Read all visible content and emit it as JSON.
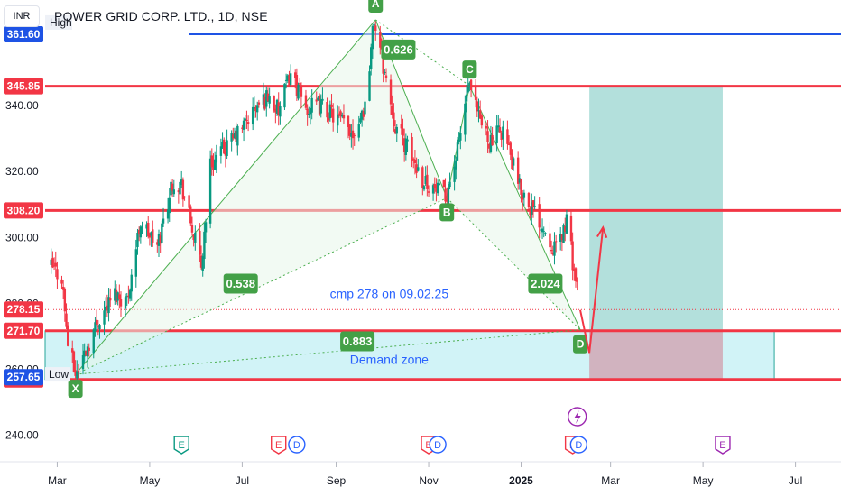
{
  "header": {
    "currency": "INR",
    "title": "POWER GRID CORP. LTD., 1D, NSE"
  },
  "chart_data": {
    "type": "candlestick",
    "symbol": "POWER GRID CORP. LTD.",
    "interval": "1D",
    "exchange": "NSE",
    "currency": "INR",
    "ylim": [
      232,
      372
    ],
    "y_ticks": [
      240.0,
      260.0,
      280.0,
      300.0,
      320.0,
      340.0
    ],
    "y_tick_labels": [
      "240.00",
      "260.00",
      "280.00",
      "300.00",
      "320.00",
      "340.00"
    ],
    "x_range": [
      "2024-02-22",
      "2025-07-31"
    ],
    "x_ticks": [
      {
        "date": "2024-03-01",
        "label": "Mar"
      },
      {
        "date": "2024-05-01",
        "label": "May"
      },
      {
        "date": "2024-07-01",
        "label": "Jul"
      },
      {
        "date": "2024-09-01",
        "label": "Sep"
      },
      {
        "date": "2024-11-01",
        "label": "Nov"
      },
      {
        "date": "2025-01-01",
        "label": "2025"
      },
      {
        "date": "2025-03-01",
        "label": "Mar"
      },
      {
        "date": "2025-05-01",
        "label": "May"
      },
      {
        "date": "2025-07-01",
        "label": "Jul"
      }
    ],
    "price_path": [
      [
        "2024-02-26",
        291
      ],
      [
        "2024-03-04",
        288
      ],
      [
        "2024-03-08",
        268
      ],
      [
        "2024-03-13",
        258.5
      ],
      [
        "2024-03-20",
        266
      ],
      [
        "2024-03-28",
        275
      ],
      [
        "2024-04-08",
        283
      ],
      [
        "2024-04-16",
        281
      ],
      [
        "2024-04-25",
        305
      ],
      [
        "2024-05-06",
        297
      ],
      [
        "2024-05-16",
        317
      ],
      [
        "2024-05-22",
        316
      ],
      [
        "2024-06-04",
        291
      ],
      [
        "2024-06-10",
        322
      ],
      [
        "2024-06-26",
        330
      ],
      [
        "2024-07-08",
        338
      ],
      [
        "2024-07-18",
        343
      ],
      [
        "2024-07-25",
        338
      ],
      [
        "2024-08-02",
        350
      ],
      [
        "2024-08-12",
        339
      ],
      [
        "2024-08-22",
        340
      ],
      [
        "2024-09-02",
        336
      ],
      [
        "2024-09-12",
        332
      ],
      [
        "2024-09-20",
        340
      ],
      [
        "2024-09-26",
        366
      ],
      [
        "2024-10-03",
        350
      ],
      [
        "2024-10-10",
        334
      ],
      [
        "2024-10-18",
        327
      ],
      [
        "2024-10-28",
        318
      ],
      [
        "2024-11-04",
        315
      ],
      [
        "2024-11-12",
        312
      ],
      [
        "2024-11-20",
        326
      ],
      [
        "2024-11-27",
        346
      ],
      [
        "2024-12-04",
        336
      ],
      [
        "2024-12-12",
        329
      ],
      [
        "2024-12-20",
        333
      ],
      [
        "2024-12-30",
        316
      ],
      [
        "2025-01-08",
        309
      ],
      [
        "2025-01-16",
        303
      ],
      [
        "2025-01-24",
        296
      ],
      [
        "2025-01-31",
        305
      ],
      [
        "2025-02-05",
        290
      ],
      [
        "2025-02-09",
        278
      ]
    ],
    "horizontal_levels": [
      {
        "label": "361.60",
        "value": 361.6,
        "color": "#1e53e5"
      },
      {
        "label": "345.85",
        "value": 345.85,
        "color": "#f23645"
      },
      {
        "label": "308.20",
        "value": 308.2,
        "color": "#f23645"
      },
      {
        "label": "271.70",
        "value": 271.7,
        "color": "#f23645"
      },
      {
        "label": "256.95",
        "value": 256.95,
        "color": "#f23645"
      }
    ],
    "price_labels": [
      {
        "label": "278.15",
        "value": 278.15,
        "color": "#f23645"
      },
      {
        "label": "257.65",
        "value": 257.65,
        "color": "#1e53e5"
      }
    ],
    "high_low_labels": {
      "high": "High",
      "low": "Low"
    },
    "harmonic_pattern": {
      "points": [
        {
          "name": "X",
          "date": "2024-03-13",
          "value": 258.5
        },
        {
          "name": "A",
          "date": "2024-09-27",
          "value": 366
        },
        {
          "name": "B",
          "date": "2024-11-13",
          "value": 312
        },
        {
          "name": "C",
          "date": "2024-11-28",
          "value": 346
        },
        {
          "name": "D",
          "date": "2025-02-09",
          "value": 272
        }
      ],
      "ratios": [
        {
          "label": "0.626",
          "date": "2024-10-12",
          "value": 357
        },
        {
          "label": "0.538",
          "date": "2024-06-30",
          "value": 286
        },
        {
          "label": "2.024",
          "date": "2025-01-17",
          "value": 286
        },
        {
          "label": "0.883",
          "date": "2024-09-15",
          "value": 268.5
        }
      ]
    },
    "annotations": [
      {
        "text": "cmp 278 on 09.02.25",
        "date": "2024-10-06",
        "value": 283
      },
      {
        "text": "Demand zone",
        "date": "2024-10-06",
        "value": 263
      }
    ],
    "demand_zone": {
      "from": "2024-02-22",
      "to": "2025-06-17",
      "top": 271.7,
      "bottom": 256.95,
      "color": "#b2ebf2"
    },
    "position": {
      "start": "2025-02-15",
      "end": "2025-05-14",
      "target_top": 345.85,
      "entry": 271.7,
      "stop": 256.95,
      "profit_color": "#26a69a",
      "loss_color": "#d1a3b0"
    },
    "projection_arrow": [
      [
        "2025-02-09",
        278
      ],
      [
        "2025-02-15",
        265
      ],
      [
        "2025-02-24",
        303
      ]
    ],
    "events": [
      {
        "type": "E",
        "color": "#089981",
        "date": "2024-05-22"
      },
      {
        "type": "E",
        "color": "#f23645",
        "date": "2024-07-25"
      },
      {
        "type": "D",
        "color": "#2962ff",
        "date": "2024-08-06"
      },
      {
        "type": "E",
        "color": "#f23645",
        "date": "2024-11-01"
      },
      {
        "type": "D",
        "color": "#2962ff",
        "date": "2024-11-07"
      },
      {
        "type": "E",
        "color": "#f23645",
        "date": "2025-02-04"
      },
      {
        "type": "D",
        "color": "#2962ff",
        "date": "2025-02-08"
      },
      {
        "type": "E",
        "color": "#9c27b0",
        "date": "2025-05-14"
      }
    ],
    "split_marker": {
      "date": "2025-02-07",
      "color": "#9c27b0"
    }
  }
}
